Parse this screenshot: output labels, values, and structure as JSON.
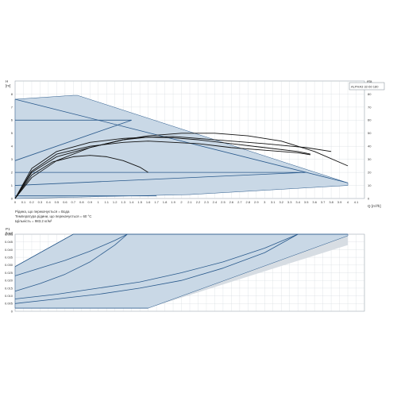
{
  "chart_data": [
    {
      "type": "line",
      "model_label": "ALPHA3 32-60 180",
      "ylabel_left": "H\n[m]",
      "ylabel_right": "eta\n[%]",
      "xlabel": "Q [m³/h]",
      "xlim": [
        0,
        4.2
      ],
      "ylim": [
        0,
        9
      ],
      "ylim_right": [
        0,
        90
      ],
      "x_ticks": [
        0,
        0.1,
        0.2,
        0.3,
        0.4,
        0.5,
        0.6,
        0.7,
        0.8,
        0.9,
        1.0,
        1.1,
        1.2,
        1.3,
        1.4,
        1.5,
        1.6,
        1.7,
        1.8,
        1.9,
        2.0,
        2.1,
        2.2,
        2.3,
        2.4,
        2.5,
        2.6,
        2.7,
        2.8,
        2.9,
        3.0,
        3.1,
        3.2,
        3.3,
        3.4,
        3.5,
        3.6,
        3.7,
        3.8,
        3.9,
        4.0,
        4.1
      ],
      "y_ticks": [
        0,
        1,
        2,
        3,
        4,
        5,
        6,
        7,
        8
      ],
      "y_ticks_right": [
        0,
        10,
        20,
        30,
        40,
        50,
        60,
        70,
        80
      ],
      "grid": true,
      "operating_area": {
        "x": [
          0,
          0,
          0.7,
          0.75,
          4.0,
          4.0,
          2.1,
          0
        ],
        "y": [
          0,
          7.6,
          7.9,
          7.9,
          1.2,
          1.0,
          0.3,
          0
        ]
      },
      "grey_extension": {
        "x": [
          1.6,
          2.3,
          4.0,
          4.0,
          1.6
        ],
        "y": [
          0.3,
          0.7,
          1.2,
          1.0,
          0.3
        ]
      },
      "series": [
        {
          "x": [
            0,
            1.4
          ],
          "y": [
            6.0,
            6.0
          ]
        },
        {
          "x": [
            0,
            1.4
          ],
          "y": [
            2.9,
            6.0
          ]
        },
        {
          "x": [
            0,
            3.5
          ],
          "y": [
            2.0,
            2.0
          ]
        },
        {
          "x": [
            0,
            3.5
          ],
          "y": [
            1.0,
            2.0
          ]
        },
        {
          "x": [
            0,
            1.7
          ],
          "y": [
            0.2,
            0.2
          ]
        },
        {
          "x": [
            0,
            4.0
          ],
          "y": [
            7.6,
            1.2
          ]
        },
        {
          "x": [
            0,
            0.2,
            0.5,
            0.9,
            1.3,
            1.6,
            1.9,
            2.2,
            2.6,
            3.0,
            3.4,
            3.55
          ],
          "y": [
            0,
            2.3,
            3.6,
            4.3,
            4.6,
            4.7,
            4.65,
            4.5,
            4.2,
            3.9,
            3.6,
            3.4
          ]
        },
        {
          "x": [
            0,
            0.2,
            0.5,
            0.9,
            1.3,
            1.6,
            1.9,
            2.2,
            2.6,
            3.0,
            3.4,
            3.55
          ],
          "y": [
            0,
            2.1,
            3.4,
            4.0,
            4.3,
            4.4,
            4.3,
            4.2,
            3.9,
            3.7,
            3.5,
            3.35
          ]
        },
        {
          "x": [
            0,
            0.2,
            0.5,
            0.9,
            1.3,
            1.6,
            1.9,
            2.2,
            2.6,
            3.0,
            3.5,
            3.8
          ],
          "y": [
            0,
            2.0,
            3.2,
            3.9,
            4.5,
            4.7,
            4.75,
            4.6,
            4.4,
            4.2,
            3.9,
            3.6
          ]
        },
        {
          "x": [
            0,
            0.2,
            0.5,
            0.9,
            1.3,
            1.6,
            2.0,
            2.4,
            2.8,
            3.2,
            3.6,
            4.0
          ],
          "y": [
            0,
            1.6,
            2.9,
            3.9,
            4.5,
            4.8,
            5.0,
            5.0,
            4.8,
            4.4,
            3.6,
            2.5
          ]
        },
        {
          "x": [
            0,
            0.2,
            0.45,
            0.7,
            0.9,
            1.1,
            1.3,
            1.5,
            1.6
          ],
          "y": [
            0,
            1.8,
            2.8,
            3.2,
            3.3,
            3.2,
            2.9,
            2.4,
            2.0
          ]
        }
      ],
      "notes": [
        "Рідина, що перекачується = Вода",
        "Температура рідини, що перекачується = 60 °C",
        "Щільність = 983.2 кг/м³"
      ]
    },
    {
      "type": "line",
      "ylabel": "P1\n[kW]",
      "xlim": [
        0,
        4.2
      ],
      "ylim": [
        0,
        0.05
      ],
      "y_ticks": [
        0,
        0.005,
        0.01,
        0.015,
        0.02,
        0.025,
        0.03,
        0.035,
        0.04,
        0.045,
        0.05
      ],
      "y_tick_labels": [
        "0",
        "0.005",
        "0.010",
        "0.015",
        "0.020",
        "0.025",
        "0.030",
        "0.035",
        "0.040",
        "0.045",
        "0.050"
      ],
      "x_ticks": [
        0,
        0.1,
        0.2,
        0.3,
        0.4,
        0.5,
        0.6,
        0.7,
        0.8,
        0.9,
        1.0,
        1.1,
        1.2,
        1.3,
        1.4,
        1.5,
        1.6,
        1.7,
        1.8,
        1.9,
        2.0,
        2.1,
        2.2,
        2.3,
        2.4,
        2.5,
        2.6,
        2.7,
        2.8,
        2.9,
        3.0,
        3.1,
        3.2,
        3.3,
        3.4,
        3.5,
        3.6,
        3.7,
        3.8,
        3.9,
        4.0,
        4.1
      ],
      "grid": true,
      "operating_area": {
        "x": [
          0,
          0.7,
          4.0,
          4.0,
          1.6,
          0
        ],
        "y": [
          0.029,
          0.05,
          0.05,
          0.049,
          0.002,
          0.002
        ]
      },
      "grey_extension": {
        "x": [
          1.6,
          4.0,
          4.0,
          1.6
        ],
        "y": [
          0.002,
          0.049,
          0.043,
          0.002
        ]
      },
      "series": [
        {
          "x": [
            0,
            0.7,
            4.0
          ],
          "y": [
            0.029,
            0.05,
            0.05
          ]
        },
        {
          "x": [
            0,
            0.3,
            0.6,
            0.9,
            1.2,
            1.35
          ],
          "y": [
            0.023,
            0.028,
            0.033,
            0.039,
            0.046,
            0.05
          ]
        },
        {
          "x": [
            0,
            0.3,
            0.6,
            0.9,
            1.2,
            1.35
          ],
          "y": [
            0.013,
            0.018,
            0.024,
            0.032,
            0.043,
            0.05
          ]
        },
        {
          "x": [
            0,
            0.5,
            1.0,
            1.5,
            2.0,
            2.5,
            3.0,
            3.4
          ],
          "y": [
            0.008,
            0.011,
            0.015,
            0.019,
            0.025,
            0.032,
            0.041,
            0.05
          ]
        },
        {
          "x": [
            0,
            0.5,
            1.0,
            1.5,
            2.0,
            2.5,
            3.0,
            3.4
          ],
          "y": [
            0.005,
            0.008,
            0.011,
            0.015,
            0.02,
            0.028,
            0.038,
            0.05
          ]
        },
        {
          "x": [
            0,
            1.6
          ],
          "y": [
            0.002,
            0.002
          ]
        }
      ]
    }
  ],
  "colors": {
    "area_fill": "#c9d8e6",
    "grey_fill": "#d7dde3",
    "blue_line": "#2a5a8c",
    "black_line": "#111111",
    "grid": "#cfd5da"
  }
}
